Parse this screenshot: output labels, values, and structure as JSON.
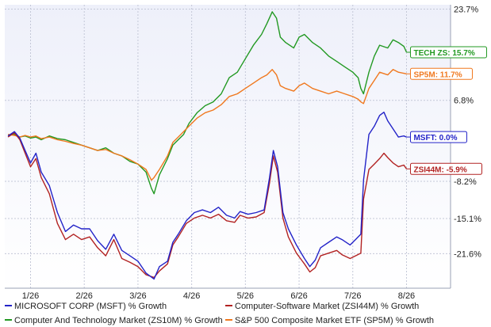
{
  "chart_data": {
    "type": "line",
    "title": "",
    "xlabel": "",
    "ylabel": "",
    "ylim": [
      -28,
      24.5
    ],
    "grid": true,
    "x_ticks": [
      {
        "label": "1/26",
        "x": 1.2
      },
      {
        "label": "2/26",
        "x": 2.2
      },
      {
        "label": "3/26",
        "x": 3.2
      },
      {
        "label": "4/26",
        "x": 4.2
      },
      {
        "label": "5/26",
        "x": 5.2
      },
      {
        "label": "6/26",
        "x": 6.2
      },
      {
        "label": "7/26",
        "x": 7.2
      },
      {
        "label": "8/26",
        "x": 8.2
      }
    ],
    "xlim": [
      0.72,
      9.02
    ],
    "y_ticks": [
      {
        "label": "23.7%",
        "value": 23.7
      },
      {
        "label": "6.8%",
        "value": 6.8
      },
      {
        "label": "-8.2%",
        "value": -8.2
      },
      {
        "label": "-15.1%",
        "value": -15.1
      },
      {
        "label": "-21.6%",
        "value": -21.6
      }
    ],
    "series": [
      {
        "name": "MICROSOFT CORP (MSFT) % Growth",
        "end_label": "MSFT: 0.0%",
        "color": "#2323c8",
        "points": [
          [
            0.78,
            0.2
          ],
          [
            0.9,
            1.0
          ],
          [
            1.0,
            -0.2
          ],
          [
            1.1,
            -2.5
          ],
          [
            1.2,
            -4.8
          ],
          [
            1.3,
            -3.0
          ],
          [
            1.4,
            -6.5
          ],
          [
            1.55,
            -9.0
          ],
          [
            1.7,
            -14.0
          ],
          [
            1.85,
            -17.5
          ],
          [
            2.0,
            -16.3
          ],
          [
            2.15,
            -17.0
          ],
          [
            2.3,
            -17.0
          ],
          [
            2.45,
            -19.2
          ],
          [
            2.6,
            -20.8
          ],
          [
            2.75,
            -18.0
          ],
          [
            2.9,
            -21.0
          ],
          [
            3.05,
            -22.0
          ],
          [
            3.2,
            -23.0
          ],
          [
            3.35,
            -25.2
          ],
          [
            3.5,
            -26.3
          ],
          [
            3.6,
            -24.0
          ],
          [
            3.75,
            -23.0
          ],
          [
            3.85,
            -19.5
          ],
          [
            3.95,
            -18.0
          ],
          [
            4.1,
            -15.5
          ],
          [
            4.25,
            -14.0
          ],
          [
            4.4,
            -13.5
          ],
          [
            4.55,
            -14.0
          ],
          [
            4.7,
            -13.0
          ],
          [
            4.85,
            -14.5
          ],
          [
            5.0,
            -15.0
          ],
          [
            5.1,
            -13.8
          ],
          [
            5.25,
            -14.3
          ],
          [
            5.4,
            -14.0
          ],
          [
            5.55,
            -13.5
          ],
          [
            5.65,
            -7.5
          ],
          [
            5.72,
            -2.5
          ],
          [
            5.8,
            -5.5
          ],
          [
            5.9,
            -14.0
          ],
          [
            6.0,
            -17.0
          ],
          [
            6.15,
            -20.0
          ],
          [
            6.3,
            -22.5
          ],
          [
            6.4,
            -24.0
          ],
          [
            6.5,
            -22.8
          ],
          [
            6.6,
            -20.5
          ],
          [
            6.75,
            -19.5
          ],
          [
            6.9,
            -18.5
          ],
          [
            7.0,
            -19.0
          ],
          [
            7.15,
            -20.0
          ],
          [
            7.25,
            -19.0
          ],
          [
            7.35,
            -18.0
          ],
          [
            7.4,
            -8.0
          ],
          [
            7.5,
            0.5
          ],
          [
            7.6,
            2.0
          ],
          [
            7.7,
            4.0
          ],
          [
            7.78,
            4.6
          ],
          [
            7.85,
            3.0
          ],
          [
            7.95,
            1.5
          ],
          [
            8.05,
            0.0
          ],
          [
            8.15,
            0.2
          ],
          [
            8.2,
            0.0
          ]
        ]
      },
      {
        "name": "Computer-Software Market (ZSI44M) % Growth",
        "end_label": "ZSI44M: -5.9%",
        "color": "#b22222",
        "points": [
          [
            0.78,
            0.0
          ],
          [
            0.9,
            0.8
          ],
          [
            1.0,
            -0.5
          ],
          [
            1.1,
            -3.0
          ],
          [
            1.2,
            -5.5
          ],
          [
            1.3,
            -4.0
          ],
          [
            1.4,
            -7.5
          ],
          [
            1.55,
            -10.5
          ],
          [
            1.7,
            -16.0
          ],
          [
            1.85,
            -19.0
          ],
          [
            2.0,
            -18.0
          ],
          [
            2.15,
            -19.0
          ],
          [
            2.3,
            -18.5
          ],
          [
            2.45,
            -20.5
          ],
          [
            2.6,
            -22.0
          ],
          [
            2.75,
            -19.0
          ],
          [
            2.9,
            -22.5
          ],
          [
            3.05,
            -23.2
          ],
          [
            3.2,
            -24.0
          ],
          [
            3.35,
            -25.5
          ],
          [
            3.5,
            -26.0
          ],
          [
            3.6,
            -24.8
          ],
          [
            3.75,
            -23.5
          ],
          [
            3.85,
            -20.0
          ],
          [
            3.95,
            -18.5
          ],
          [
            4.1,
            -16.0
          ],
          [
            4.25,
            -15.0
          ],
          [
            4.4,
            -14.5
          ],
          [
            4.55,
            -15.0
          ],
          [
            4.7,
            -14.3
          ],
          [
            4.85,
            -15.5
          ],
          [
            5.0,
            -15.8
          ],
          [
            5.1,
            -14.5
          ],
          [
            5.25,
            -15.0
          ],
          [
            5.4,
            -14.8
          ],
          [
            5.55,
            -14.0
          ],
          [
            5.65,
            -8.5
          ],
          [
            5.72,
            -3.5
          ],
          [
            5.8,
            -6.5
          ],
          [
            5.9,
            -15.0
          ],
          [
            6.0,
            -18.5
          ],
          [
            6.15,
            -21.5
          ],
          [
            6.3,
            -23.5
          ],
          [
            6.4,
            -25.0
          ],
          [
            6.5,
            -24.2
          ],
          [
            6.6,
            -22.0
          ],
          [
            6.75,
            -21.5
          ],
          [
            6.9,
            -21.0
          ],
          [
            7.0,
            -21.8
          ],
          [
            7.15,
            -22.5
          ],
          [
            7.25,
            -22.0
          ],
          [
            7.35,
            -21.5
          ],
          [
            7.4,
            -11.5
          ],
          [
            7.5,
            -6.0
          ],
          [
            7.6,
            -5.0
          ],
          [
            7.7,
            -4.0
          ],
          [
            7.78,
            -3.0
          ],
          [
            7.85,
            -3.8
          ],
          [
            7.95,
            -4.8
          ],
          [
            8.05,
            -5.5
          ],
          [
            8.15,
            -5.2
          ],
          [
            8.2,
            -5.9
          ]
        ]
      },
      {
        "name": "Computer And Technology Market (ZS10M) % Growth",
        "end_label": "TECH ZS: 15.7%",
        "color": "#229922",
        "points": [
          [
            0.78,
            0.3
          ],
          [
            0.9,
            0.5
          ],
          [
            1.0,
            0.0
          ],
          [
            1.1,
            0.2
          ],
          [
            1.2,
            -0.2
          ],
          [
            1.3,
            0.0
          ],
          [
            1.4,
            -0.5
          ],
          [
            1.55,
            0.2
          ],
          [
            1.7,
            -0.3
          ],
          [
            1.85,
            -0.5
          ],
          [
            2.0,
            -1.0
          ],
          [
            2.15,
            -1.5
          ],
          [
            2.3,
            -2.0
          ],
          [
            2.45,
            -2.5
          ],
          [
            2.6,
            -2.0
          ],
          [
            2.75,
            -3.0
          ],
          [
            2.9,
            -3.5
          ],
          [
            3.05,
            -4.5
          ],
          [
            3.2,
            -5.0
          ],
          [
            3.35,
            -6.5
          ],
          [
            3.45,
            -9.5
          ],
          [
            3.5,
            -10.5
          ],
          [
            3.6,
            -7.0
          ],
          [
            3.75,
            -4.0
          ],
          [
            3.85,
            -1.5
          ],
          [
            3.95,
            -0.5
          ],
          [
            4.05,
            0.5
          ],
          [
            4.15,
            2.5
          ],
          [
            4.3,
            4.5
          ],
          [
            4.45,
            5.8
          ],
          [
            4.6,
            6.5
          ],
          [
            4.75,
            8.0
          ],
          [
            4.9,
            11.0
          ],
          [
            5.05,
            12.0
          ],
          [
            5.2,
            14.5
          ],
          [
            5.35,
            17.0
          ],
          [
            5.5,
            19.0
          ],
          [
            5.6,
            21.0
          ],
          [
            5.7,
            23.2
          ],
          [
            5.78,
            22.0
          ],
          [
            5.85,
            18.5
          ],
          [
            5.95,
            17.5
          ],
          [
            6.1,
            16.5
          ],
          [
            6.2,
            18.5
          ],
          [
            6.3,
            19.0
          ],
          [
            6.45,
            17.5
          ],
          [
            6.6,
            16.5
          ],
          [
            6.75,
            15.0
          ],
          [
            6.9,
            14.0
          ],
          [
            7.05,
            13.0
          ],
          [
            7.2,
            12.0
          ],
          [
            7.3,
            11.0
          ],
          [
            7.35,
            9.0
          ],
          [
            7.4,
            8.0
          ],
          [
            7.5,
            12.0
          ],
          [
            7.6,
            15.0
          ],
          [
            7.7,
            17.0
          ],
          [
            7.85,
            16.5
          ],
          [
            7.95,
            18.0
          ],
          [
            8.05,
            17.5
          ],
          [
            8.15,
            16.8
          ],
          [
            8.2,
            15.7
          ]
        ]
      },
      {
        "name": "S&P 500 Composite Market ETF (SP5M) % Growth",
        "end_label": "SP5M: 11.7%",
        "color": "#f0781e",
        "points": [
          [
            0.78,
            0.5
          ],
          [
            0.9,
            0.3
          ],
          [
            1.0,
            0.0
          ],
          [
            1.1,
            0.3
          ],
          [
            1.2,
            0.0
          ],
          [
            1.3,
            0.2
          ],
          [
            1.4,
            -0.3
          ],
          [
            1.55,
            0.0
          ],
          [
            1.7,
            -0.5
          ],
          [
            1.85,
            -0.8
          ],
          [
            2.0,
            -1.2
          ],
          [
            2.15,
            -1.5
          ],
          [
            2.3,
            -2.0
          ],
          [
            2.45,
            -2.5
          ],
          [
            2.6,
            -2.3
          ],
          [
            2.75,
            -3.0
          ],
          [
            2.9,
            -3.5
          ],
          [
            3.05,
            -4.2
          ],
          [
            3.2,
            -5.0
          ],
          [
            3.35,
            -6.0
          ],
          [
            3.45,
            -8.0
          ],
          [
            3.5,
            -7.5
          ],
          [
            3.6,
            -6.0
          ],
          [
            3.75,
            -3.5
          ],
          [
            3.85,
            -1.0
          ],
          [
            3.95,
            0.0
          ],
          [
            4.05,
            1.0
          ],
          [
            4.15,
            2.0
          ],
          [
            4.3,
            3.5
          ],
          [
            4.45,
            4.5
          ],
          [
            4.6,
            5.0
          ],
          [
            4.75,
            6.0
          ],
          [
            4.9,
            7.5
          ],
          [
            5.05,
            8.0
          ],
          [
            5.2,
            9.0
          ],
          [
            5.35,
            10.0
          ],
          [
            5.5,
            11.0
          ],
          [
            5.6,
            11.5
          ],
          [
            5.7,
            12.5
          ],
          [
            5.78,
            11.5
          ],
          [
            5.85,
            9.5
          ],
          [
            5.95,
            9.0
          ],
          [
            6.1,
            8.5
          ],
          [
            6.2,
            9.5
          ],
          [
            6.3,
            10.0
          ],
          [
            6.45,
            9.0
          ],
          [
            6.6,
            8.5
          ],
          [
            6.75,
            8.0
          ],
          [
            6.9,
            8.5
          ],
          [
            7.05,
            8.0
          ],
          [
            7.2,
            7.5
          ],
          [
            7.3,
            7.0
          ],
          [
            7.35,
            6.5
          ],
          [
            7.4,
            6.2
          ],
          [
            7.5,
            9.0
          ],
          [
            7.6,
            10.5
          ],
          [
            7.7,
            12.0
          ],
          [
            7.85,
            11.5
          ],
          [
            7.95,
            12.5
          ],
          [
            8.05,
            12.0
          ],
          [
            8.15,
            11.8
          ],
          [
            8.2,
            11.7
          ]
        ]
      }
    ]
  },
  "legend": [
    {
      "label": "MICROSOFT CORP (MSFT) % Growth",
      "color": "#2323c8"
    },
    {
      "label": "Computer-Software Market (ZSI44M) % Growth",
      "color": "#b22222"
    },
    {
      "label": "Computer And Technology Market (ZS10M) % Growth",
      "color": "#229922"
    },
    {
      "label": "S&P 500 Composite Market ETF (SP5M) % Growth",
      "color": "#f0781e"
    }
  ],
  "colors": {
    "plot_background_top": "#eef0fa",
    "plot_background_bottom": "#ffffff",
    "grid": "#c4c8d8"
  }
}
